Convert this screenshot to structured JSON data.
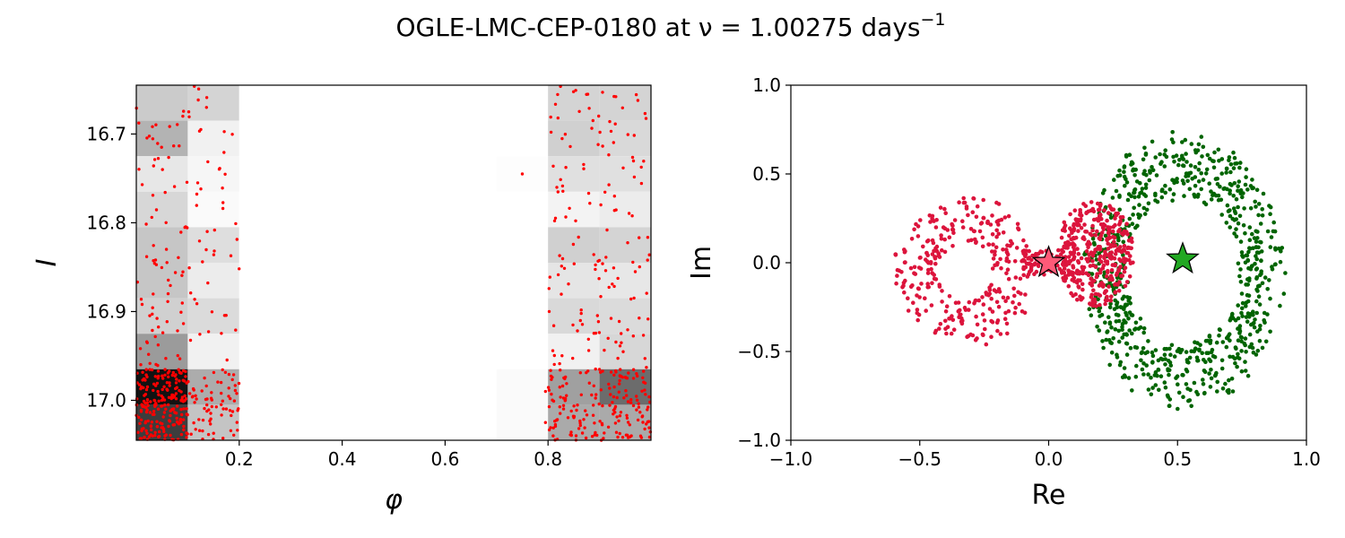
{
  "figure": {
    "title_main": "OGLE-LMC-CEP-0180 at ν = 1.00275 days",
    "title_sup": "−1"
  },
  "chart_data": [
    {
      "type": "scatter",
      "subtype": "phase-folded light curve with 2D histogram background",
      "xlabel": "φ",
      "ylabel": "I",
      "xlim": [
        0,
        1
      ],
      "ylim": [
        17.045,
        16.645
      ],
      "y_inverted": true,
      "x_ticks": [
        "0.2",
        "0.4",
        "0.6",
        "0.8"
      ],
      "x_tick_values": [
        0.2,
        0.4,
        0.6,
        0.8
      ],
      "y_ticks": [
        "16.7",
        "16.8",
        "16.9",
        "17.0"
      ],
      "y_tick_values": [
        16.7,
        16.8,
        16.9,
        17.0
      ],
      "point_color": "#ff0000",
      "histogram_colormap": "greys",
      "histogram": {
        "x_bins": [
          0.0,
          0.1,
          0.2,
          0.3,
          0.4,
          0.5,
          0.6,
          0.7,
          0.8,
          0.9,
          1.0
        ],
        "y_bins": [
          16.645,
          16.685,
          16.725,
          16.765,
          16.805,
          16.845,
          16.885,
          16.925,
          16.965,
          17.005,
          17.045
        ],
        "intensity_rows_top_to_bottom": [
          [
            0.22,
            0.18,
            0,
            0,
            0,
            0,
            0,
            0,
            0.18,
            0.18
          ],
          [
            0.32,
            0.06,
            0,
            0,
            0,
            0,
            0,
            0,
            0.2,
            0.16
          ],
          [
            0.1,
            0.04,
            0,
            0,
            0,
            0,
            0,
            0.01,
            0.13,
            0.13
          ],
          [
            0.17,
            0.02,
            0,
            0,
            0,
            0,
            0,
            0,
            0.05,
            0.08
          ],
          [
            0.24,
            0.14,
            0,
            0,
            0,
            0,
            0,
            0,
            0.2,
            0.18
          ],
          [
            0.24,
            0.08,
            0,
            0,
            0,
            0,
            0,
            0,
            0.11,
            0.1
          ],
          [
            0.2,
            0.15,
            0,
            0,
            0,
            0,
            0,
            0,
            0.16,
            0.15
          ],
          [
            0.42,
            0.06,
            0,
            0,
            0,
            0,
            0,
            0,
            0.06,
            0.17
          ],
          [
            1.0,
            0.35,
            0,
            0,
            0,
            0,
            0,
            0.02,
            0.4,
            0.62
          ],
          [
            0.82,
            0.25,
            0,
            0,
            0,
            0,
            0,
            0.02,
            0.36,
            0.36
          ]
        ]
      },
      "point_clusters": [
        {
          "x_range": [
            0.0,
            0.1
          ],
          "y_range": [
            16.645,
            16.965
          ],
          "count": 80
        },
        {
          "x_range": [
            0.1,
            0.2
          ],
          "y_range": [
            16.645,
            16.965
          ],
          "count": 48
        },
        {
          "x_range": [
            0.0,
            0.1
          ],
          "y_range": [
            16.965,
            17.045
          ],
          "count": 200
        },
        {
          "x_range": [
            0.1,
            0.2
          ],
          "y_range": [
            16.965,
            17.045
          ],
          "count": 70
        },
        {
          "x_range": [
            0.8,
            0.9
          ],
          "y_range": [
            16.645,
            16.965
          ],
          "count": 75
        },
        {
          "x_range": [
            0.9,
            1.0
          ],
          "y_range": [
            16.645,
            16.965
          ],
          "count": 70
        },
        {
          "x_range": [
            0.8,
            0.9
          ],
          "y_range": [
            16.965,
            17.045
          ],
          "count": 80
        },
        {
          "x_range": [
            0.9,
            1.0
          ],
          "y_range": [
            16.965,
            17.045
          ],
          "count": 100
        }
      ],
      "isolated_points": [
        {
          "x": 0.75,
          "y": 16.745
        },
        {
          "x": 0.795,
          "y": 17.025
        },
        {
          "x": 0.795,
          "y": 16.99
        }
      ]
    },
    {
      "type": "scatter",
      "subtype": "complex plane",
      "xlabel": "Re",
      "ylabel": "Im",
      "xlim": [
        -1.0,
        1.0
      ],
      "ylim": [
        -1.0,
        1.0
      ],
      "x_ticks": [
        "−1.0",
        "−0.5",
        "0.0",
        "0.5",
        "1.0"
      ],
      "x_tick_values": [
        -1.0,
        -0.5,
        0.0,
        0.5,
        1.0
      ],
      "y_ticks": [
        "−1.0",
        "−0.5",
        "0.0",
        "0.5",
        "1.0"
      ],
      "y_tick_values": [
        -1.0,
        -0.5,
        0.0,
        0.5,
        1.0
      ],
      "series": [
        {
          "color": "#006400",
          "description": "green ring",
          "center": [
            0.52,
            -0.05
          ],
          "radius_x": [
            0.17,
            0.38
          ],
          "radius_y": [
            0.38,
            0.8
          ],
          "count": 760
        },
        {
          "color": "#dc143c",
          "description": "crimson bowtie",
          "left_lobe": {
            "center": [
              -0.33,
              -0.05
            ],
            "radius_x": 0.28,
            "radius_y": 0.47
          },
          "right_lobe": {
            "center": [
              0.18,
              0.05
            ],
            "radius_x": 0.15,
            "radius_y": 0.3
          },
          "count": 760
        }
      ],
      "markers": [
        {
          "shape": "star",
          "x": 0.0,
          "y": 0.0,
          "color": "#ff5a78"
        },
        {
          "shape": "star",
          "x": 0.52,
          "y": 0.02,
          "color": "#22a822"
        }
      ]
    }
  ]
}
